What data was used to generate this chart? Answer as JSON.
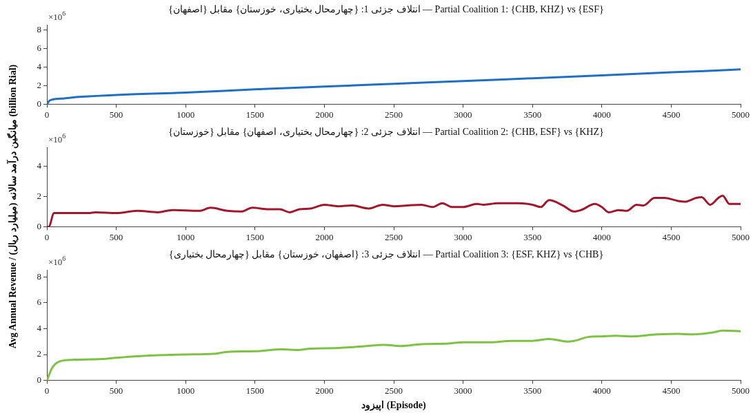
{
  "chart_data": [
    {
      "type": "line",
      "title": "انتلاف جزئی 1: {چهارمحال بختیاری، خوزستان} مقابل {اصفهان} — Partial Coalition 1: {CHB, KHZ} vs {ESF}",
      "annotations": [
        "×10$^{6}$"
      ],
      "xlim": [
        0,
        5000
      ],
      "xticks": [
        0,
        500,
        1000,
        1500,
        2000,
        2500,
        3000,
        3500,
        4000,
        4500,
        5000
      ],
      "ylim": [
        0,
        8.5
      ],
      "yticks": [
        0,
        2,
        4,
        6,
        8
      ],
      "grid": false,
      "legend": false,
      "marker": "none",
      "line_style": "solid",
      "series": [
        {
          "color": "#1f6fc5",
          "x": [
            0,
            20,
            100,
            250,
            500,
            1000,
            1500,
            2000,
            2500,
            3000,
            3500,
            4000,
            4500,
            4700,
            5000
          ],
          "values": [
            0,
            0.4,
            0.6,
            0.8,
            1.0,
            1.25,
            1.6,
            1.9,
            2.2,
            2.5,
            2.8,
            3.1,
            3.45,
            3.55,
            3.75
          ]
        }
      ]
    },
    {
      "type": "line",
      "title": "انتلاف جزئی 2: {چهارمحال بختیاری، اصفهان} مقابل {خوزستان} — Partial Coalition 2: {CHB, ESF} vs {KHZ}",
      "ylabel": "Avg Annual Revenue / میانگین درآمد سالانه (میلیارد ریال) (billion Rial)",
      "annotations": [
        "×10$^{6}$"
      ],
      "xlim": [
        0,
        5000
      ],
      "xticks": [
        0,
        500,
        1000,
        1500,
        2000,
        2500,
        3000,
        3500,
        4000,
        4500,
        5000
      ],
      "ylim": [
        0,
        5.2
      ],
      "yticks": [
        0,
        2,
        4
      ],
      "grid": false,
      "legend": false,
      "marker": "none",
      "line_style": "solid",
      "series": [
        {
          "color": "#a3172c",
          "x": [
            0,
            15,
            50,
            300,
            350,
            500,
            650,
            800,
            900,
            1100,
            1180,
            1300,
            1400,
            1480,
            1600,
            1680,
            1750,
            1820,
            1900,
            2000,
            2100,
            2200,
            2320,
            2420,
            2500,
            2600,
            2700,
            2780,
            2850,
            2920,
            3000,
            3100,
            3150,
            3250,
            3400,
            3500,
            3560,
            3620,
            3720,
            3800,
            3850,
            3950,
            4000,
            4050,
            4120,
            4180,
            4250,
            4300,
            4380,
            4450,
            4550,
            4600,
            4680,
            4720,
            4780,
            4840,
            4870,
            4920,
            5000
          ],
          "values": [
            0,
            0,
            0.9,
            0.9,
            0.95,
            0.9,
            1.05,
            0.95,
            1.1,
            1.05,
            1.25,
            1.05,
            1.0,
            1.25,
            1.15,
            1.15,
            0.95,
            1.15,
            1.2,
            1.45,
            1.35,
            1.4,
            1.2,
            1.45,
            1.35,
            1.4,
            1.45,
            1.3,
            1.55,
            1.3,
            1.3,
            1.5,
            1.45,
            1.55,
            1.55,
            1.45,
            1.3,
            1.75,
            1.4,
            1.0,
            1.1,
            1.5,
            1.3,
            0.95,
            1.1,
            1.05,
            1.45,
            1.4,
            1.9,
            1.9,
            1.7,
            1.65,
            1.9,
            1.95,
            1.45,
            1.9,
            2.05,
            1.5,
            1.5
          ]
        }
      ]
    },
    {
      "type": "line",
      "title": "انتلاف جزئی 3: {اصفهان، خوزستان} مقابل {چهارمحال بختیاری} — Partial Coalition 3: {ESF, KHZ} vs {CHB}",
      "xlabel": "اپیزود (Episode)",
      "annotations": [
        "×10$^{6}$"
      ],
      "xlim": [
        0,
        5000
      ],
      "xticks": [
        0,
        500,
        1000,
        1500,
        2000,
        2500,
        3000,
        3500,
        4000,
        4500,
        5000
      ],
      "ylim": [
        0,
        8.5
      ],
      "yticks": [
        0,
        2,
        4,
        6,
        8
      ],
      "grid": false,
      "legend": false,
      "marker": "none",
      "line_style": "solid",
      "series": [
        {
          "color": "#7dc242",
          "x": [
            0,
            40,
            100,
            200,
            400,
            500,
            700,
            1000,
            1200,
            1300,
            1500,
            1700,
            1800,
            1900,
            2100,
            2300,
            2430,
            2550,
            2700,
            2900,
            3000,
            3200,
            3350,
            3500,
            3620,
            3750,
            3800,
            3900,
            4000,
            4100,
            4200,
            4400,
            4550,
            4650,
            4800,
            4870,
            5000
          ],
          "values": [
            0,
            1.0,
            1.5,
            1.6,
            1.65,
            1.75,
            1.9,
            2.0,
            2.05,
            2.2,
            2.25,
            2.4,
            2.35,
            2.45,
            2.5,
            2.65,
            2.75,
            2.65,
            2.8,
            2.85,
            2.95,
            2.95,
            3.05,
            3.05,
            3.2,
            3.0,
            3.05,
            3.35,
            3.4,
            3.45,
            3.4,
            3.55,
            3.6,
            3.55,
            3.7,
            3.85,
            3.8
          ]
        }
      ]
    }
  ]
}
